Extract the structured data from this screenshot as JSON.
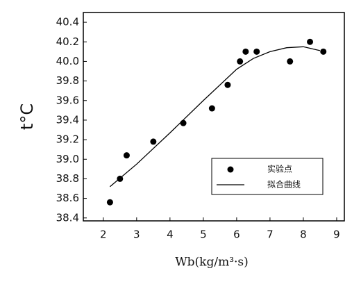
{
  "chart_data": {
    "type": "scatter",
    "xlabel": "Wb(kg/m³·s)",
    "ylabel": "t°C",
    "xlim": [
      1.4,
      9.23
    ],
    "xticks": [
      2,
      3,
      4,
      5,
      6,
      7,
      8,
      9
    ],
    "ylim": [
      38.37,
      40.5
    ],
    "yticks": [
      38.4,
      38.6,
      38.8,
      {
        "value": 39.0,
        "label": "39.0"
      },
      39.2,
      39.4,
      39.6,
      39.8,
      {
        "value": 40.0,
        "label": "40.0"
      },
      40.2,
      40.4
    ],
    "legend": "lower-right",
    "series": [
      {
        "name": "实验点",
        "type": "scatter",
        "color": "#000000",
        "x": [
          2.2,
          2.5,
          2.7,
          3.5,
          4.4,
          5.26,
          5.73,
          6.1,
          6.27,
          6.6,
          7.6,
          8.2,
          8.6
        ],
        "values": [
          38.56,
          38.8,
          39.04,
          39.18,
          39.37,
          39.52,
          39.76,
          40.0,
          40.1,
          40.1,
          40.0,
          40.2,
          40.1
        ]
      },
      {
        "name": "拟合曲线",
        "type": "line",
        "color": "#000000",
        "x": [
          2.2,
          3,
          4,
          5,
          6,
          6.5,
          7,
          7.5,
          8,
          8.5
        ],
        "values": [
          38.72,
          38.95,
          39.27,
          39.6,
          39.92,
          40.03,
          40.1,
          40.14,
          40.15,
          40.11
        ]
      }
    ]
  }
}
